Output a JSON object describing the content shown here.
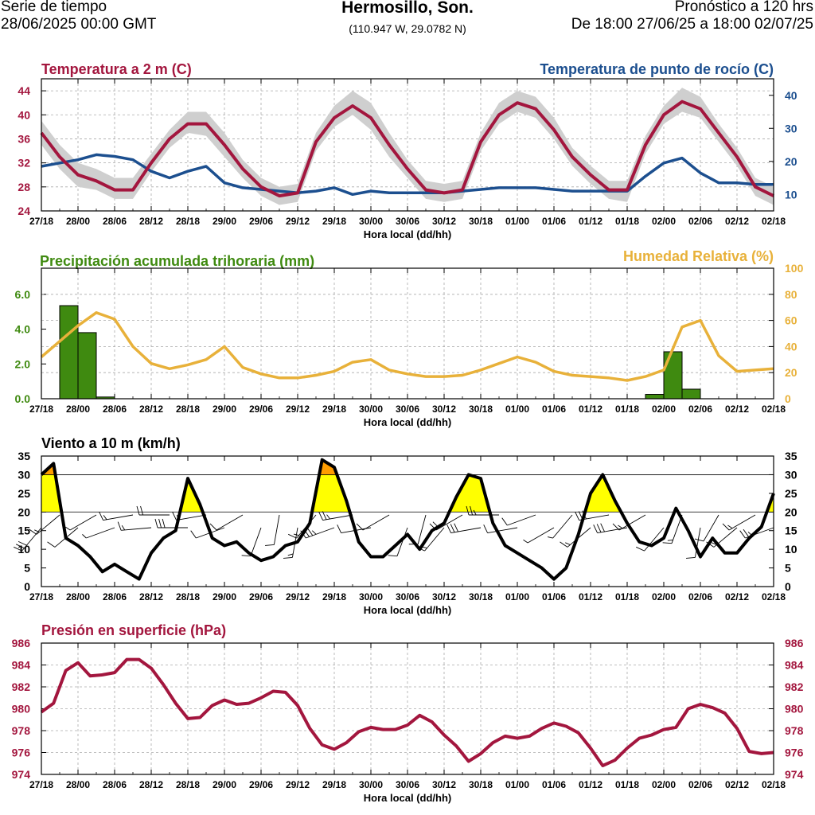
{
  "header": {
    "left_line1": "Serie de tiempo",
    "left_line2": "28/06/2025 00:00 GMT",
    "title": "Hermosillo, Son.",
    "coords": "(110.947 W, 29.0782 N)",
    "right_line1": "Pronóstico a 120 hrs",
    "right_line2": "De 18:00 27/06/25 a 18:00 02/07/25"
  },
  "colors": {
    "temperature": "#a3163e",
    "dewpoint": "#1c4f8f",
    "precipitation": "#3f8a10",
    "humidity": "#e8b13a",
    "wind": "#000000",
    "wind_fill_yellow": "#ffff00",
    "wind_fill_orange": "#ff9d00",
    "pressure": "#a3163e",
    "uncertainty_band": "#cfcfcf"
  },
  "chart_data": [
    {
      "id": "temp",
      "type": "line",
      "title": "Temperatura a 2 m (C)",
      "right_title": "Temperatura de punto de rocío (C)",
      "xlabel": "Hora local (dd/hh)",
      "x_range": [
        0,
        120
      ],
      "x_ticks": [
        "27/18",
        "28/00",
        "28/06",
        "28/12",
        "28/18",
        "29/00",
        "29/06",
        "29/12",
        "29/18",
        "30/00",
        "30/06",
        "30/12",
        "30/18",
        "01/00",
        "01/06",
        "01/12",
        "01/18",
        "02/00",
        "02/06",
        "02/12",
        "02/18"
      ],
      "ylim_left": [
        24,
        46
      ],
      "yticks_left": [
        "24",
        "28",
        "32",
        "36",
        "40",
        "44"
      ],
      "ylim_right": [
        5,
        45
      ],
      "yticks_right": [
        "10",
        "20",
        "30",
        "40"
      ],
      "series": [
        {
          "name": "Temperatura a 2 m",
          "axis": "left",
          "x": [
            0,
            3,
            6,
            9,
            12,
            15,
            18,
            21,
            24,
            27,
            30,
            33,
            36,
            39,
            42,
            45,
            48,
            51,
            54,
            57,
            60,
            63,
            66,
            69,
            72,
            75,
            78,
            81,
            84,
            87,
            90,
            93,
            96,
            99,
            102,
            105,
            108,
            111,
            114,
            117,
            120
          ],
          "y": [
            37,
            33,
            30,
            29,
            27.5,
            27.5,
            32,
            36,
            38.5,
            38.5,
            35,
            31,
            28,
            26.5,
            27,
            35.5,
            39.5,
            41.5,
            39.5,
            35,
            31,
            27.5,
            27,
            27.5,
            35.5,
            40,
            42,
            41,
            37.5,
            33,
            30,
            27.5,
            27.5,
            35,
            40,
            42.2,
            41,
            37,
            33,
            28,
            26.5
          ]
        },
        {
          "name": "Temperatura de punto de rocío",
          "axis": "right",
          "x": [
            0,
            3,
            6,
            9,
            12,
            15,
            18,
            21,
            24,
            27,
            30,
            33,
            36,
            39,
            42,
            45,
            48,
            51,
            54,
            57,
            60,
            63,
            66,
            69,
            72,
            75,
            78,
            81,
            84,
            87,
            90,
            93,
            96,
            99,
            102,
            105,
            108,
            111,
            114,
            117,
            120
          ],
          "y": [
            18.5,
            19.5,
            20.5,
            22,
            21.5,
            20.5,
            17,
            15,
            17,
            18.5,
            13.5,
            12,
            11.5,
            11,
            10.5,
            11,
            12,
            10,
            11,
            10.5,
            10.5,
            10.5,
            10.5,
            11,
            11.5,
            12,
            12,
            12,
            11.5,
            11,
            11,
            11,
            11,
            15.5,
            19.5,
            21,
            16.5,
            13.5,
            13.5,
            13,
            13
          ]
        }
      ],
      "band": {
        "name": "Rango de temperatura",
        "x": [
          0,
          3,
          6,
          9,
          12,
          15,
          18,
          21,
          24,
          27,
          30,
          33,
          36,
          39,
          42,
          45,
          48,
          51,
          54,
          57,
          60,
          63,
          66,
          69,
          72,
          75,
          78,
          81,
          84,
          87,
          90,
          93,
          96,
          99,
          102,
          105,
          108,
          111,
          114,
          117,
          120
        ],
        "lower": [
          35,
          31,
          28,
          27.5,
          26,
          26,
          30.5,
          34.5,
          37,
          36.5,
          33,
          29.5,
          26.5,
          25,
          25.5,
          34,
          38,
          40,
          37.5,
          33,
          29.5,
          26,
          25.5,
          26,
          34,
          38.5,
          40.5,
          39.5,
          36,
          31.5,
          28.5,
          26,
          25.5,
          33.5,
          38.5,
          40.5,
          39.5,
          35.5,
          31.5,
          26.5,
          25
        ],
        "upper": [
          39,
          35,
          32,
          31,
          29.5,
          29.5,
          33.5,
          37.5,
          40.5,
          40.5,
          37,
          32.5,
          29.5,
          28,
          28.5,
          37,
          41.5,
          44,
          42,
          37,
          32.5,
          29,
          28.5,
          29,
          37,
          42,
          44,
          43,
          39.5,
          34.5,
          31.5,
          29,
          29,
          36.5,
          41.5,
          44.5,
          43,
          38.5,
          34.5,
          29.5,
          28
        ]
      }
    },
    {
      "id": "precip",
      "type": "bar",
      "title": "Precipitación acumulada trihoraria (mm)",
      "right_title": "Humedad Relativa (%)",
      "xlabel": "Hora local (dd/hh)",
      "x_range": [
        0,
        120
      ],
      "x_ticks": [
        "27/18",
        "28/00",
        "28/06",
        "28/12",
        "28/18",
        "29/00",
        "29/06",
        "29/12",
        "29/18",
        "30/00",
        "30/06",
        "30/12",
        "30/18",
        "01/00",
        "01/06",
        "01/12",
        "01/18",
        "02/00",
        "02/06",
        "02/12",
        "02/18"
      ],
      "ylim_left": [
        0,
        7.5
      ],
      "yticks_left": [
        "0.0",
        "2.0",
        "4.0",
        "6.0"
      ],
      "ylim_right": [
        0,
        100
      ],
      "yticks_right": [
        "0",
        "20",
        "40",
        "60",
        "80",
        "100"
      ],
      "bars": {
        "name": "Precipitación acumulada trihoraria",
        "x_start": [
          3,
          6,
          9,
          99,
          102,
          105
        ],
        "values": [
          5.35,
          3.8,
          0.1,
          0.25,
          2.7,
          0.55
        ],
        "width": 3
      },
      "series": [
        {
          "name": "Humedad Relativa",
          "axis": "right",
          "x": [
            0,
            3,
            6,
            9,
            12,
            15,
            18,
            21,
            24,
            27,
            30,
            33,
            36,
            39,
            42,
            45,
            48,
            51,
            54,
            57,
            60,
            63,
            66,
            69,
            72,
            75,
            78,
            81,
            84,
            87,
            90,
            93,
            96,
            99,
            102,
            105,
            108,
            111,
            114,
            117,
            120
          ],
          "y": [
            32,
            44,
            56,
            66,
            61,
            40,
            27,
            23,
            26,
            30,
            40,
            24,
            19,
            16,
            16,
            18,
            21,
            28,
            30,
            22,
            19,
            17,
            17,
            18,
            22,
            27,
            32,
            28,
            21,
            18,
            17,
            16,
            14,
            17,
            22,
            55,
            60,
            33,
            21,
            22,
            23
          ]
        }
      ]
    },
    {
      "id": "wind",
      "type": "area",
      "title": "Viento a 10 m (km/h)",
      "xlabel": "Hora local (dd/hh)",
      "x_range": [
        0,
        120
      ],
      "x_ticks": [
        "27/18",
        "28/00",
        "28/06",
        "28/12",
        "28/18",
        "29/00",
        "29/06",
        "29/12",
        "29/18",
        "30/00",
        "30/06",
        "30/12",
        "30/18",
        "01/00",
        "01/06",
        "01/12",
        "01/18",
        "02/00",
        "02/06",
        "02/12",
        "02/18"
      ],
      "ylim": [
        0,
        35
      ],
      "yticks": [
        "0",
        "5",
        "10",
        "15",
        "20",
        "25",
        "30",
        "35"
      ],
      "thresholds": [
        20,
        30
      ],
      "series": [
        {
          "name": "Viento a 10 m",
          "x": [
            0,
            2,
            4,
            6,
            8,
            10,
            12,
            14,
            16,
            18,
            20,
            22,
            24,
            26,
            28,
            30,
            32,
            34,
            36,
            38,
            40,
            42,
            44,
            46,
            48,
            50,
            52,
            54,
            56,
            58,
            60,
            62,
            64,
            66,
            68,
            70,
            72,
            74,
            76,
            78,
            80,
            82,
            84,
            86,
            88,
            90,
            92,
            94,
            96,
            98,
            100,
            102,
            104,
            106,
            108,
            110,
            112,
            114,
            116,
            118,
            120
          ],
          "y": [
            30,
            33,
            13,
            11,
            8,
            4,
            6,
            4,
            2,
            9,
            13,
            15,
            29,
            22,
            13,
            11,
            12,
            9,
            7,
            8,
            11,
            12,
            17,
            34,
            32,
            23,
            12,
            8,
            8,
            11,
            14,
            10,
            15,
            17,
            24,
            30,
            29,
            17,
            11,
            9,
            7,
            5,
            2,
            5,
            14,
            25,
            30,
            23,
            17,
            12,
            11,
            13,
            21,
            15,
            8,
            13,
            9,
            9,
            13,
            16,
            25
          ]
        }
      ],
      "wind_barbs": {
        "x": [
          0,
          3,
          6,
          9,
          12,
          15,
          18,
          21,
          24,
          27,
          30,
          33,
          36,
          39,
          42,
          45,
          48,
          51,
          54,
          57,
          60,
          63,
          66,
          69,
          72,
          75,
          78,
          81,
          84,
          87,
          90,
          93,
          96,
          99,
          102,
          105,
          108,
          111,
          114,
          117,
          120
        ],
        "speed": [
          30,
          13,
          8,
          5,
          4,
          13,
          15,
          22,
          29,
          13,
          12,
          9,
          8,
          11,
          14,
          17,
          33,
          23,
          10,
          8,
          12,
          10,
          15,
          18,
          28,
          23,
          12,
          9,
          7,
          5,
          14,
          28,
          28,
          14,
          11,
          15,
          8,
          10,
          13,
          16,
          25
        ],
        "direction_deg": [
          220,
          230,
          230,
          240,
          250,
          260,
          265,
          270,
          270,
          260,
          250,
          240,
          200,
          190,
          190,
          220,
          250,
          260,
          260,
          240,
          200,
          195,
          220,
          240,
          260,
          270,
          260,
          250,
          240,
          220,
          230,
          260,
          260,
          240,
          220,
          200,
          190,
          210,
          230,
          240,
          250
        ]
      }
    },
    {
      "id": "pressure",
      "type": "line",
      "title": "Presión en superficie (hPa)",
      "xlabel": "Hora local (dd/hh)",
      "x_range": [
        0,
        120
      ],
      "x_ticks": [
        "27/18",
        "28/00",
        "28/06",
        "28/12",
        "28/18",
        "29/00",
        "29/06",
        "29/12",
        "29/18",
        "30/00",
        "30/06",
        "30/12",
        "30/18",
        "01/00",
        "01/06",
        "01/12",
        "01/18",
        "02/00",
        "02/06",
        "02/12",
        "02/18"
      ],
      "ylim": [
        974,
        986
      ],
      "yticks": [
        "974",
        "976",
        "978",
        "980",
        "982",
        "984",
        "986"
      ],
      "series": [
        {
          "name": "Presión en superficie",
          "x": [
            0,
            2,
            4,
            6,
            8,
            10,
            12,
            14,
            16,
            18,
            20,
            22,
            24,
            26,
            28,
            30,
            32,
            34,
            36,
            38,
            40,
            42,
            44,
            46,
            48,
            50,
            52,
            54,
            56,
            58,
            60,
            62,
            64,
            66,
            68,
            70,
            72,
            74,
            76,
            78,
            80,
            82,
            84,
            86,
            88,
            90,
            92,
            94,
            96,
            98,
            100,
            102,
            104,
            106,
            108,
            110,
            112,
            114,
            116,
            118,
            120
          ],
          "y": [
            979.7,
            980.5,
            983.5,
            984.2,
            983,
            983.1,
            983.3,
            984.5,
            984.5,
            983.7,
            982.2,
            980.5,
            979.1,
            979.2,
            980.3,
            980.8,
            980.4,
            980.5,
            981,
            981.6,
            981.5,
            980.3,
            978.2,
            976.7,
            976.3,
            976.9,
            977.9,
            978.3,
            978.1,
            978.1,
            978.5,
            979.4,
            978.8,
            977.6,
            976.6,
            975.2,
            975.9,
            976.9,
            977.5,
            977.3,
            977.5,
            978.2,
            978.7,
            978.4,
            977.8,
            976.4,
            974.8,
            975.3,
            976.4,
            977.3,
            977.6,
            978.1,
            978.3,
            980,
            980.4,
            980.1,
            979.6,
            978.2,
            976.1,
            975.9,
            976
          ]
        }
      ]
    }
  ]
}
